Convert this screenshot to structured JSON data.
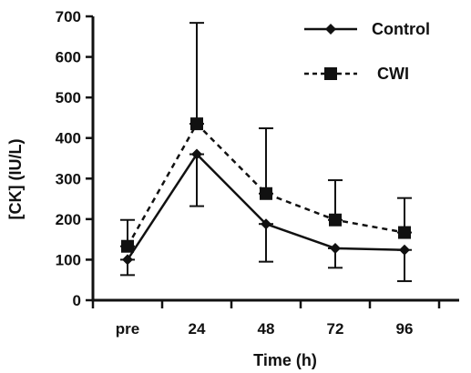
{
  "chart_data": {
    "type": "line",
    "xlabel": "Time (h)",
    "ylabel": "[CK] (IU/L)",
    "categories": [
      "pre",
      "24",
      "48",
      "72",
      "96"
    ],
    "ylim": [
      0,
      700
    ],
    "yticks": [
      0,
      100,
      200,
      300,
      400,
      500,
      600,
      700
    ],
    "grid": false,
    "legend_position": "top-right",
    "series": [
      {
        "name": "Control",
        "marker": "diamond",
        "line_style": "solid",
        "color": "#111111",
        "values": [
          100,
          360,
          188,
          128,
          124
        ],
        "error_bars": [
          {
            "low": 62,
            "high": 100
          },
          {
            "low": 232,
            "high": 360
          },
          {
            "low": 95,
            "high": 188
          },
          {
            "low": 80,
            "high": 128
          },
          {
            "low": 47,
            "high": 124
          }
        ]
      },
      {
        "name": "CWI",
        "marker": "square",
        "line_style": "dashed",
        "color": "#111111",
        "values": [
          133,
          435,
          263,
          198,
          167
        ],
        "error_bars": [
          {
            "low": 133,
            "high": 198
          },
          {
            "low": 435,
            "high": 684
          },
          {
            "low": 263,
            "high": 424
          },
          {
            "low": 198,
            "high": 296
          },
          {
            "low": 167,
            "high": 252
          }
        ]
      }
    ]
  }
}
